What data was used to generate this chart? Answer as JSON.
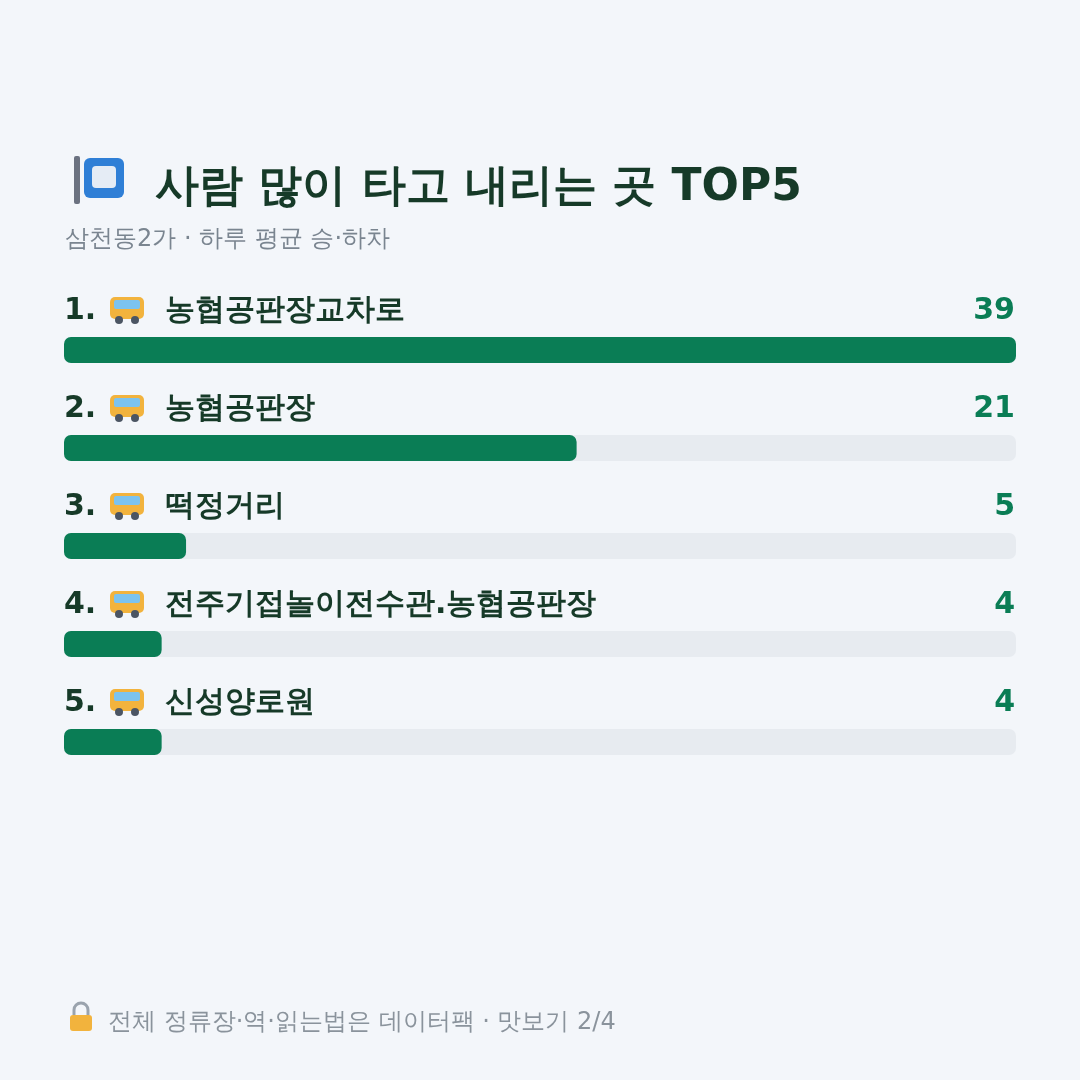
{
  "chart_data": {
    "type": "bar",
    "orientation": "horizontal",
    "title": "사람 많이 타고 내리는 곳 TOP5",
    "subtitle": "삼천동2가 · 하루 평균 승·하차",
    "categories": [
      "1. 농협공판장교차로",
      "2. 농협공판장",
      "3. 떡정거리",
      "4. 전주기접놀이전수관.농협공판장",
      "5. 신성양로원"
    ],
    "values": [
      39,
      21,
      5,
      4,
      4
    ],
    "color": "#0a7d55",
    "data_labels": true,
    "annotations": [
      "전체 정류장·역·읽는법은 데이터팩 · 맛보기 2/4"
    ]
  }
}
